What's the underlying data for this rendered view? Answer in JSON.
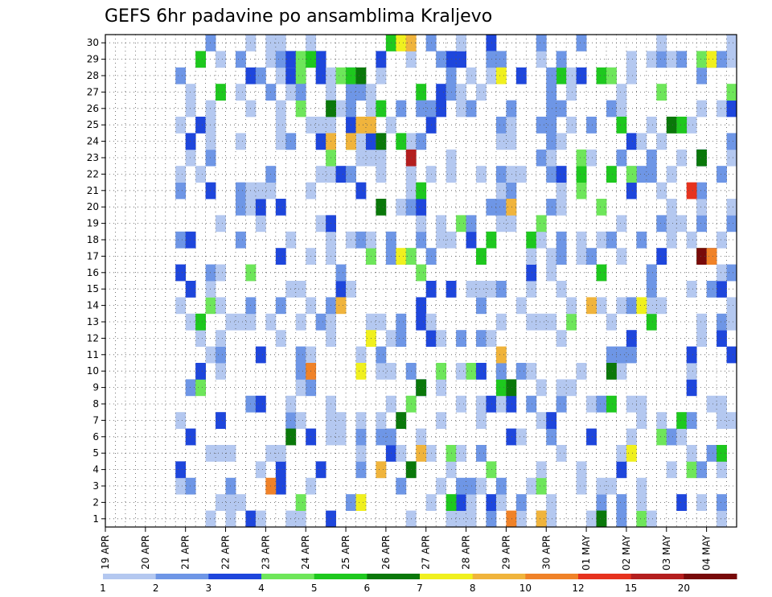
{
  "chart_data": {
    "type": "heatmap",
    "title": "GEFS 6hr padavine po ansamblima Kraljevo",
    "x_tick_labels": [
      "19 APR",
      "20 APR",
      "21 APR",
      "22 APR",
      "23 APR",
      "24 APR",
      "25 APR",
      "26 APR",
      "27 APR",
      "28 APR",
      "29 APR",
      "30 APR",
      "01 MAY",
      "02 MAY",
      "03 MAY",
      "04 MAY"
    ],
    "y_tick_labels": [
      "1",
      "2",
      "3",
      "4",
      "5",
      "6",
      "7",
      "8",
      "9",
      "10",
      "11",
      "12",
      "13",
      "14",
      "15",
      "16",
      "17",
      "18",
      "19",
      "20",
      "21",
      "22",
      "23",
      "24",
      "25",
      "26",
      "27",
      "28",
      "29",
      "30"
    ],
    "ylim": [
      0,
      30
    ],
    "grid": true,
    "legend": {
      "position": "bottom",
      "thresholds": [
        "1",
        "2",
        "3",
        "4",
        "5",
        "6",
        "7",
        "8",
        "10",
        "12",
        "15",
        "20"
      ],
      "colors": [
        "#b4c8f0",
        "#6e96e6",
        "#1e46dc",
        "#6ee65a",
        "#1ec81e",
        "#0a780a",
        "#f0f01e",
        "#f0b43c",
        "#f08228",
        "#e6321e",
        "#b41e1e",
        "#780a0a"
      ]
    },
    "cells": [
      {
        "x": "26 APR",
        "m": 30,
        "c": 5
      },
      {
        "x": "26 APR",
        "m": 30,
        "c": 7
      },
      {
        "x": "26 APR",
        "m": 30,
        "c": 8
      },
      {
        "x": "27 APR",
        "m": 30,
        "c": 1
      },
      {
        "x": "23 APR",
        "m": 29,
        "c": 1
      },
      {
        "x": "23 APR",
        "m": 29,
        "c": 2
      },
      {
        "x": "23 APR",
        "m": 29,
        "c": 3
      },
      {
        "x": "23 APR",
        "m": 29,
        "c": 4
      },
      {
        "x": "24 APR",
        "m": 29,
        "c": 5
      },
      {
        "x": "27 APR",
        "m": 29,
        "c": 2
      },
      {
        "x": "28 APR",
        "m": 29,
        "c": 2
      },
      {
        "x": "03 MAY",
        "m": 29,
        "c": 4
      },
      {
        "x": "04 MAY",
        "m": 29,
        "c": 7
      },
      {
        "x": "04 MAY",
        "m": 29,
        "c": 2
      },
      {
        "x": "24 APR",
        "m": 28,
        "c": 1
      },
      {
        "x": "24 APR",
        "m": 28,
        "c": 4
      },
      {
        "x": "25 APR",
        "m": 28,
        "c": 5
      },
      {
        "x": "25 APR",
        "m": 28,
        "c": 6
      },
      {
        "x": "27 APR",
        "m": 28,
        "c": 2
      },
      {
        "x": "28 APR",
        "m": 28,
        "c": 7
      },
      {
        "x": "30 APR",
        "m": 28,
        "c": 2
      },
      {
        "x": "01 MAY",
        "m": 28,
        "c": 5
      },
      {
        "x": "01 MAY",
        "m": 28,
        "c": 4
      },
      {
        "x": "23 APR",
        "m": 27,
        "c": 2
      },
      {
        "x": "23 APR",
        "m": 27,
        "c": 2
      },
      {
        "x": "23 APR",
        "m": 26,
        "c": 1
      },
      {
        "x": "24 APR",
        "m": 26,
        "c": 6
      },
      {
        "x": "26 APR",
        "m": 26,
        "c": 2
      },
      {
        "x": "28 APR",
        "m": 26,
        "c": 2
      },
      {
        "x": "25 APR",
        "m": 25,
        "c": 8
      },
      {
        "x": "25 APR",
        "m": 25,
        "c": 8
      },
      {
        "x": "01 MAY",
        "m": 25,
        "c": 5
      },
      {
        "x": "03 MAY",
        "m": 25,
        "c": 6
      },
      {
        "x": "03 MAY",
        "m": 25,
        "c": 5
      },
      {
        "x": "24 APR",
        "m": 24,
        "c": 8
      },
      {
        "x": "25 APR",
        "m": 24,
        "c": 6
      },
      {
        "x": "25 APR",
        "m": 24,
        "c": 8
      },
      {
        "x": "26 APR",
        "m": 24,
        "c": 5
      },
      {
        "x": "26 APR",
        "m": 23,
        "c": 11
      },
      {
        "x": "03 MAY",
        "m": 23,
        "c": 6
      },
      {
        "x": "02 MAY",
        "m": 22,
        "c": 4
      },
      {
        "x": "04 MAY",
        "m": 22,
        "c": 2
      },
      {
        "x": "03 MAY",
        "m": 21,
        "c": 10
      },
      {
        "x": "25 APR",
        "m": 20,
        "c": 6
      },
      {
        "x": "29 APR",
        "m": 20,
        "c": 8
      },
      {
        "x": "26 APR",
        "m": 17,
        "c": 7
      },
      {
        "x": "26 APR",
        "m": 17,
        "c": 4
      },
      {
        "x": "03 MAY",
        "m": 17,
        "c": 12
      },
      {
        "x": "04 MAY",
        "m": 17,
        "c": 9
      },
      {
        "x": "01 MAY",
        "m": 16,
        "c": 5
      },
      {
        "x": "02 MAY",
        "m": 16,
        "c": 2
      },
      {
        "x": "24 APR",
        "m": 14,
        "c": 8
      },
      {
        "x": "01 MAY",
        "m": 14,
        "c": 8
      },
      {
        "x": "02 MAY",
        "m": 14,
        "c": 7
      },
      {
        "x": "25 APR",
        "m": 12,
        "c": 7
      },
      {
        "x": "28 APR",
        "m": 11,
        "c": 8
      },
      {
        "x": "24 APR",
        "m": 10,
        "c": 9
      },
      {
        "x": "25 APR",
        "m": 10,
        "c": 7
      },
      {
        "x": "01 MAY",
        "m": 10,
        "c": 6
      },
      {
        "x": "26 APR",
        "m": 9,
        "c": 6
      },
      {
        "x": "29 APR",
        "m": 9,
        "c": 6
      },
      {
        "x": "26 APR",
        "m": 7,
        "c": 6
      },
      {
        "x": "23 APR",
        "m": 6,
        "c": 6
      },
      {
        "x": "26 APR",
        "m": 5,
        "c": 8
      },
      {
        "x": "02 MAY",
        "m": 5,
        "c": 7
      },
      {
        "x": "04 MAY",
        "m": 5,
        "c": 5
      },
      {
        "x": "26 APR",
        "m": 4,
        "c": 6
      },
      {
        "x": "25 APR",
        "m": 4,
        "c": 8
      },
      {
        "x": "23 APR",
        "m": 3,
        "c": 9
      },
      {
        "x": "25 APR",
        "m": 2,
        "c": 7
      },
      {
        "x": "27 APR",
        "m": 2,
        "c": 5
      },
      {
        "x": "29 APR",
        "m": 1,
        "c": 8
      },
      {
        "x": "29 APR",
        "m": 1,
        "c": 9
      },
      {
        "x": "01 MAY",
        "m": 1,
        "c": 6
      }
    ]
  }
}
